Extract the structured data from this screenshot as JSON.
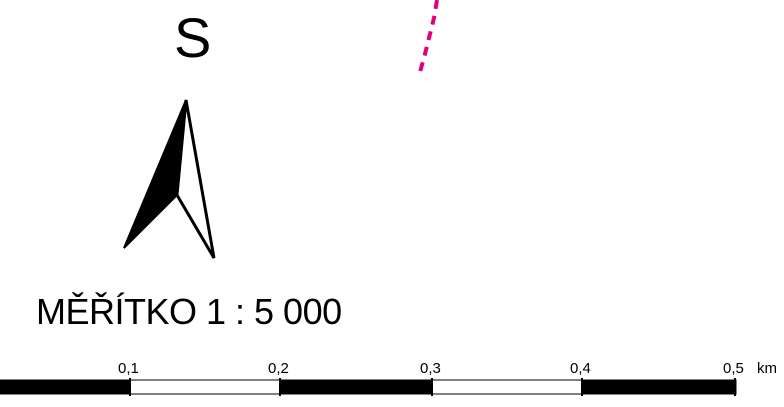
{
  "north_arrow": {
    "letter": "S",
    "icon": "north-arrow-icon"
  },
  "scale": {
    "title": "MĚŘÍTKO 1 : 5 000",
    "tick_labels": [
      "0,1",
      "0,2",
      "0,3",
      "0,4",
      "0,5"
    ],
    "unit": "km",
    "bar_colors": {
      "dark": "#000000",
      "light": "#ffffff"
    }
  },
  "boundary_line": {
    "color": "#e0007a"
  }
}
